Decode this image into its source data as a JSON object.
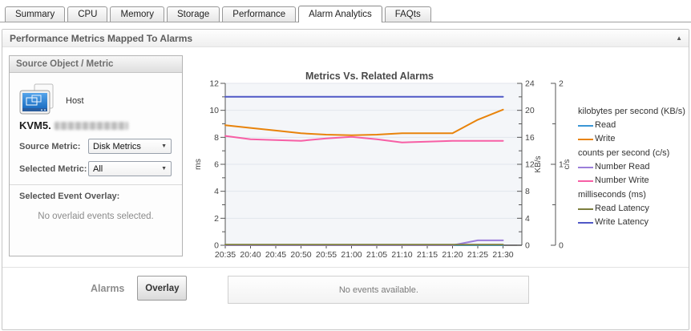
{
  "tabs": [
    {
      "label": "Summary",
      "active": false
    },
    {
      "label": "CPU",
      "active": false
    },
    {
      "label": "Memory",
      "active": false
    },
    {
      "label": "Storage",
      "active": false
    },
    {
      "label": "Performance",
      "active": false
    },
    {
      "label": "Alarm Analytics",
      "active": true
    },
    {
      "label": "FAQts",
      "active": false
    }
  ],
  "panel": {
    "title": "Performance Metrics Mapped To Alarms"
  },
  "icons": {
    "collapse": "▲",
    "dropdown": "▼"
  },
  "sidebar": {
    "header": "Source Object / Metric",
    "host_type_label": "Host",
    "host_name_prefix": "KVM5.",
    "source_metric_label": "Source Metric:",
    "source_metric_value": "Disk Metrics",
    "selected_metric_label": "Selected Metric:",
    "selected_metric_value": "All",
    "event_overlay_label": "Selected Event Overlay:",
    "event_overlay_empty": "No overlaid events selected."
  },
  "alarms": {
    "label": "Alarms",
    "overlay_button": "Overlay",
    "empty_message": "No events available."
  },
  "chart_data": {
    "type": "line",
    "title": "Metrics Vs. Related Alarms",
    "grid": true,
    "legend_position": "right",
    "x": [
      "20:35",
      "20:40",
      "20:45",
      "20:50",
      "20:55",
      "21:00",
      "21:05",
      "21:10",
      "21:15",
      "21:20",
      "21:25",
      "21:30"
    ],
    "axes": {
      "left": {
        "label": "ms",
        "range": [
          0,
          12
        ],
        "major": 2,
        "minor": 1
      },
      "right1": {
        "label": "KB/s",
        "range": [
          0,
          24
        ],
        "major": 4,
        "minor": 2
      },
      "right2": {
        "label": "c/s",
        "range": [
          0,
          2
        ],
        "major": 1,
        "minor": 0.5
      }
    },
    "series": [
      {
        "name": "Read",
        "axis": "right1",
        "color": "#3a96d5",
        "values": [
          0,
          0,
          0,
          0,
          0,
          0,
          0,
          0,
          0,
          0,
          0,
          0
        ]
      },
      {
        "name": "Write",
        "axis": "right1",
        "color": "#e8830b",
        "values": [
          17.8,
          17.4,
          17.0,
          16.6,
          16.4,
          16.3,
          16.4,
          16.6,
          16.6,
          16.6,
          18.6,
          20.1
        ]
      },
      {
        "name": "Number Read",
        "axis": "right2",
        "color": "#9b7eda",
        "values": [
          0,
          0,
          0,
          0,
          0,
          0,
          0,
          0,
          0,
          0,
          0.06,
          0.06
        ]
      },
      {
        "name": "Number Write",
        "axis": "right2",
        "color": "#f75fa5",
        "values": [
          1.35,
          1.31,
          1.3,
          1.29,
          1.32,
          1.34,
          1.31,
          1.27,
          1.28,
          1.29,
          1.29,
          1.29
        ]
      },
      {
        "name": "Read Latency",
        "axis": "left",
        "color": "#7c7e3d",
        "values": [
          0.05,
          0.05,
          0.05,
          0.05,
          0.05,
          0.05,
          0.05,
          0.05,
          0.05,
          0.05,
          0.05,
          0.05
        ]
      },
      {
        "name": "Write Latency",
        "axis": "left",
        "color": "#4f58c6",
        "values": [
          11,
          11,
          11,
          11,
          11,
          11,
          11,
          11,
          11,
          11,
          11,
          11
        ]
      }
    ],
    "legend": [
      {
        "group": "kilobytes per second (KB/s)",
        "items": [
          {
            "name": "Read",
            "color": "#3a96d5"
          },
          {
            "name": "Write",
            "color": "#e8830b"
          }
        ]
      },
      {
        "group": "counts per second (c/s)",
        "items": [
          {
            "name": "Number Read",
            "color": "#9b7eda"
          },
          {
            "name": "Number Write",
            "color": "#f75fa5"
          }
        ]
      },
      {
        "group": "milliseconds (ms)",
        "items": [
          {
            "name": "Read Latency",
            "color": "#7c7e3d"
          },
          {
            "name": "Write Latency",
            "color": "#4f58c6"
          }
        ]
      }
    ]
  }
}
